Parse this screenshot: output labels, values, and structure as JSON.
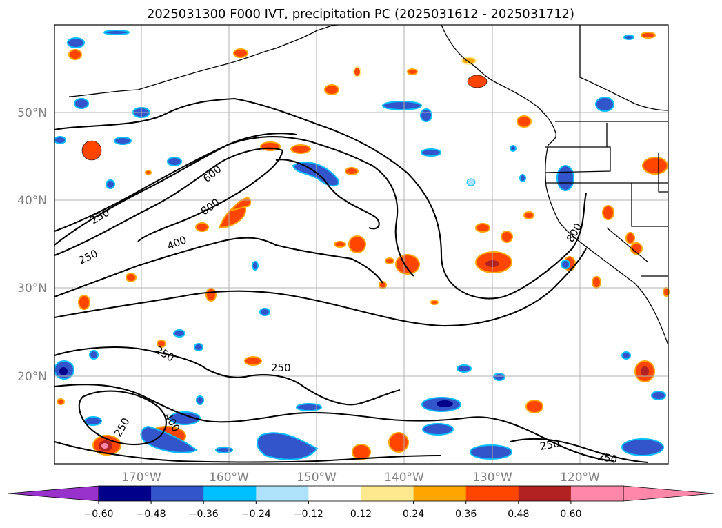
{
  "title": "2025031300 F000 IVT, precipitation PC (2025031612 - 2025031712)",
  "map": {
    "lat_labels": [
      "50°N",
      "40°N",
      "30°N",
      "20°N"
    ],
    "lon_labels": [
      "170°W",
      "160°W",
      "150°W",
      "140°W",
      "130°W",
      "120°W"
    ]
  },
  "ivt_contours": {
    "units_note": "",
    "labels": [
      "250",
      "250",
      "400",
      "600",
      "800",
      "250",
      "250",
      "400",
      "250",
      "250",
      "250",
      "800"
    ]
  },
  "colorbar": {
    "tick_labels": [
      "-0.60",
      "-0.48",
      "-0.36",
      "-0.24",
      "-0.12",
      "0.12",
      "0.24",
      "0.36",
      "0.48",
      "0.60"
    ],
    "colors": [
      "#9932cc",
      "#00008b",
      "#3355cc",
      "#00bfff",
      "#aee2fa",
      "#ffffff",
      "#ffe98f",
      "#ffa500",
      "#ff4500",
      "#b22222",
      "#ff88aa",
      "#ff88aa"
    ],
    "under_color": "#9932cc",
    "over_color": "#ff88aa"
  }
}
